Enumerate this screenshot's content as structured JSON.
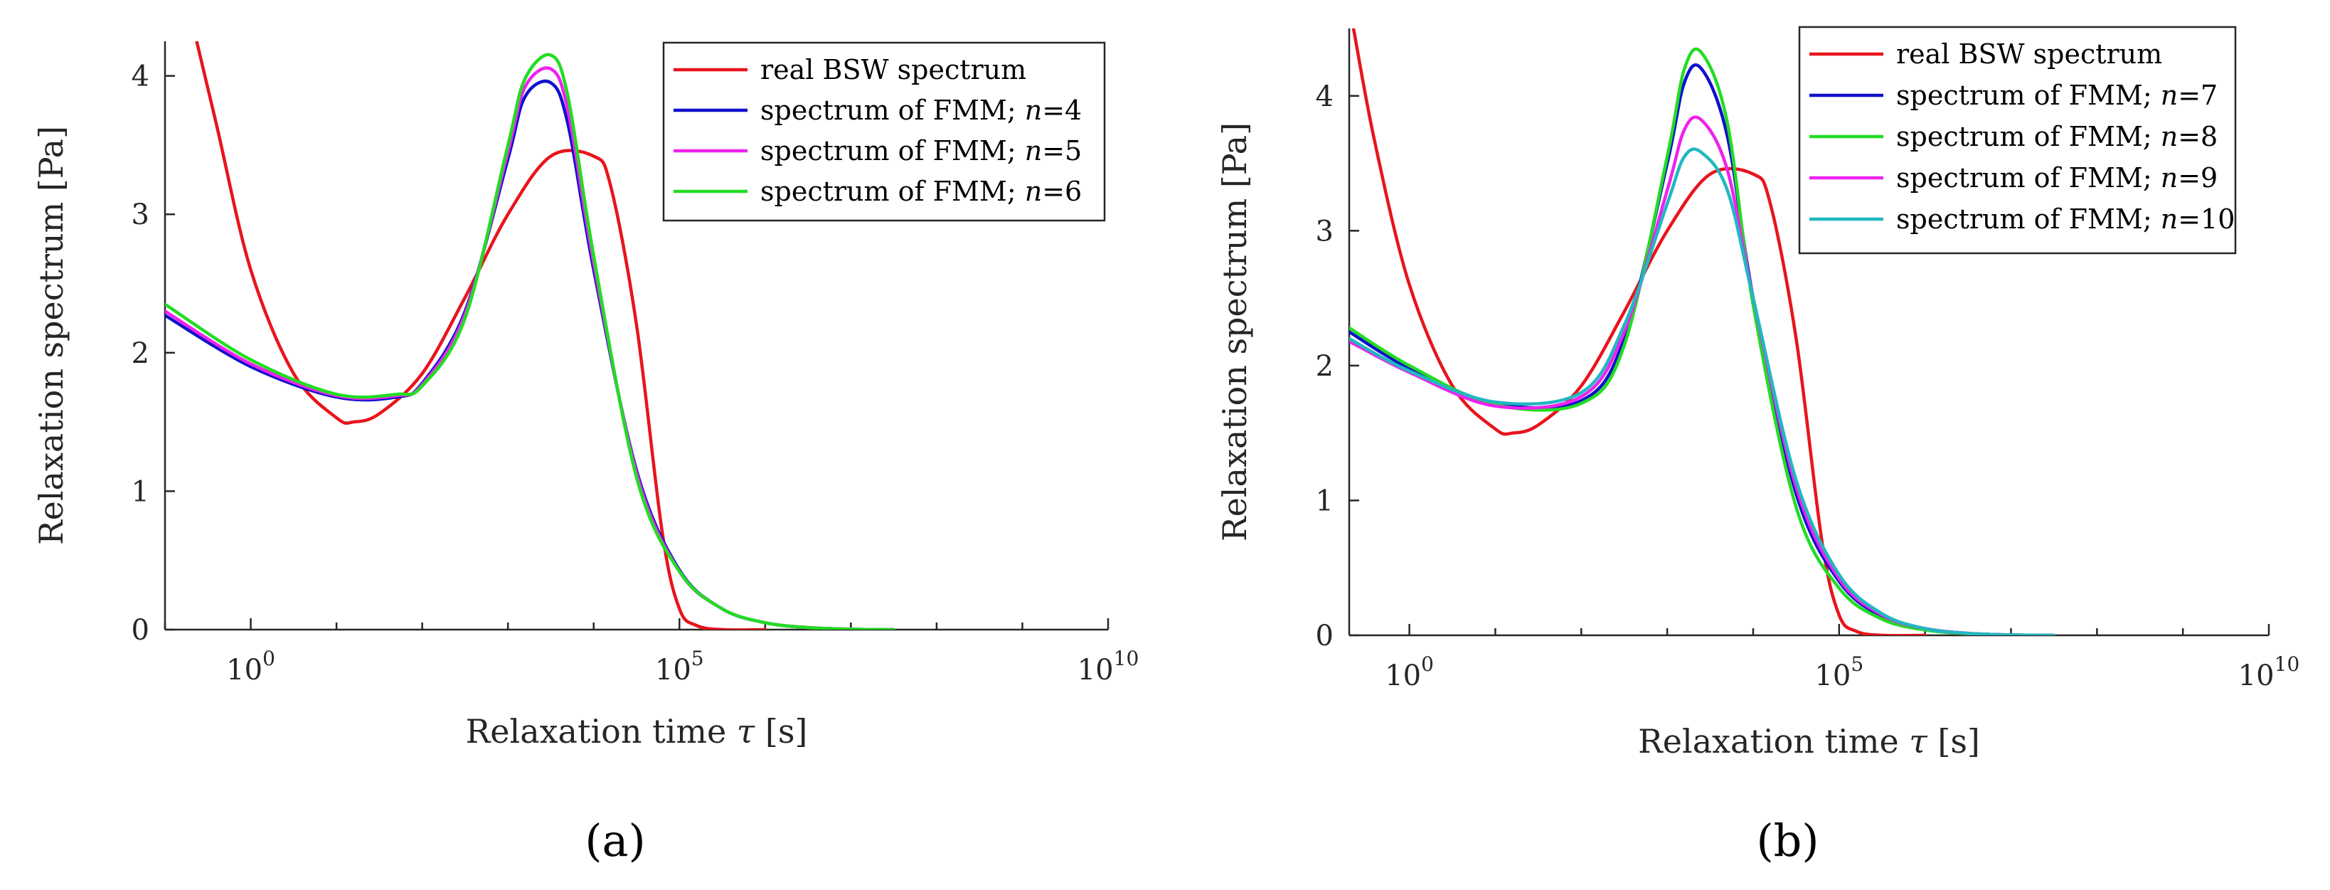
{
  "colors": {
    "real": "#e8141c",
    "n4": "#1010cc",
    "n5": "#ee22ee",
    "n6": "#22dd22",
    "n7": "#1010cc",
    "n8": "#22dd22",
    "n9": "#ee22ee",
    "n10": "#20b8c0"
  },
  "chart_data": [
    {
      "type": "line",
      "panel_label": "(a)",
      "xscale": "log10",
      "xlabel": "Relaxation time τ [s]",
      "xlabel_parts": {
        "text": "Relaxation time ",
        "symbol": "τ",
        "unit": " [s]"
      },
      "ylabel": "Relaxation spectrum  [Pa]",
      "xlim_log10": [
        -1.0,
        10.0
      ],
      "ylim": [
        0,
        4.25
      ],
      "xticks": [
        {
          "base": "10",
          "exp": "0",
          "log10": 0
        },
        {
          "base": "10",
          "exp": "5",
          "log10": 5
        },
        {
          "base": "10",
          "exp": "10",
          "log10": 10
        }
      ],
      "yticks": [
        0,
        1,
        2,
        3,
        4
      ],
      "legend": {
        "position": "top-right",
        "entries": [
          {
            "label": "real BSW spectrum",
            "color_key": "real"
          },
          {
            "label": "spectrum of FMM; ",
            "n_label": "n",
            "n_value": "=4",
            "color_key": "n4"
          },
          {
            "label": "spectrum of FMM; ",
            "n_label": "n",
            "n_value": "=5",
            "color_key": "n5"
          },
          {
            "label": "spectrum of FMM; ",
            "n_label": "n",
            "n_value": "=6",
            "color_key": "n6"
          }
        ]
      },
      "series": [
        {
          "name": "real BSW spectrum",
          "color_key": "real",
          "x_log10": [
            -0.65,
            -0.4,
            0,
            0.5,
            1,
            1.2,
            1.5,
            2,
            2.5,
            3,
            3.5,
            4,
            4.2,
            4.5,
            4.8,
            5,
            5.2,
            5.5,
            6
          ],
          "y": [
            4.3,
            3.65,
            2.6,
            1.85,
            1.53,
            1.5,
            1.56,
            1.85,
            2.4,
            3.0,
            3.42,
            3.42,
            3.2,
            2.2,
            0.7,
            0.15,
            0.03,
            0.0,
            0.0
          ]
        },
        {
          "name": "spectrum of FMM; n=4",
          "color_key": "n4",
          "x_log10": [
            -1,
            0,
            1,
            1.7,
            2,
            2.5,
            3,
            3.2,
            3.5,
            3.7,
            4,
            4.5,
            5,
            5.5,
            6,
            6.5,
            7,
            7.5
          ],
          "y": [
            2.27,
            1.9,
            1.68,
            1.68,
            1.78,
            2.3,
            3.4,
            3.85,
            3.95,
            3.65,
            2.6,
            1.15,
            0.43,
            0.15,
            0.05,
            0.015,
            0.003,
            0.0
          ]
        },
        {
          "name": "spectrum of FMM; n=5",
          "color_key": "n5",
          "x_log10": [
            -1,
            0,
            1,
            1.7,
            2,
            2.5,
            3,
            3.2,
            3.5,
            3.7,
            4,
            4.5,
            5,
            5.5,
            6,
            6.5,
            7,
            7.5
          ],
          "y": [
            2.3,
            1.92,
            1.69,
            1.69,
            1.77,
            2.28,
            3.45,
            3.92,
            4.05,
            3.75,
            2.65,
            1.13,
            0.42,
            0.15,
            0.05,
            0.015,
            0.003,
            0.0
          ]
        },
        {
          "name": "spectrum of FMM; n=6",
          "color_key": "n6",
          "x_log10": [
            -1,
            0,
            1,
            1.7,
            2,
            2.5,
            3,
            3.2,
            3.5,
            3.7,
            4,
            4.5,
            5,
            5.5,
            6,
            6.5,
            7,
            7.5
          ],
          "y": [
            2.35,
            1.95,
            1.7,
            1.7,
            1.76,
            2.25,
            3.5,
            3.98,
            4.15,
            3.85,
            2.7,
            1.1,
            0.42,
            0.15,
            0.05,
            0.015,
            0.003,
            0.0
          ]
        }
      ]
    },
    {
      "type": "line",
      "panel_label": "(b)",
      "xscale": "log10",
      "xlabel": "Relaxation time τ [s]",
      "xlabel_parts": {
        "text": "Relaxation time ",
        "symbol": "τ",
        "unit": " [s]"
      },
      "ylabel": "Relaxation spectrum  [Pa]",
      "xlim_log10": [
        -0.7,
        10.0
      ],
      "ylim": [
        0,
        4.5
      ],
      "xticks": [
        {
          "base": "10",
          "exp": "0",
          "log10": 0
        },
        {
          "base": "10",
          "exp": "5",
          "log10": 5
        },
        {
          "base": "10",
          "exp": "10",
          "log10": 10
        }
      ],
      "yticks": [
        0,
        1,
        2,
        3,
        4
      ],
      "legend": {
        "position": "top-right",
        "entries": [
          {
            "label": "real BSW spectrum",
            "color_key": "real"
          },
          {
            "label": "spectrum of FMM; ",
            "n_label": "n",
            "n_value": "=7",
            "color_key": "n7"
          },
          {
            "label": "spectrum of FMM; ",
            "n_label": "n",
            "n_value": "=8",
            "color_key": "n8"
          },
          {
            "label": "spectrum of FMM; ",
            "n_label": "n",
            "n_value": "=9",
            "color_key": "n9"
          },
          {
            "label": "spectrum of FMM; ",
            "n_label": "n",
            "n_value": "=10",
            "color_key": "n10"
          }
        ]
      },
      "series": [
        {
          "name": "real BSW spectrum",
          "color_key": "real",
          "x_log10": [
            -0.65,
            -0.4,
            0,
            0.5,
            1,
            1.2,
            1.5,
            2,
            2.5,
            3,
            3.5,
            4,
            4.2,
            4.5,
            4.8,
            5,
            5.2,
            5.5,
            6
          ],
          "y": [
            4.5,
            3.65,
            2.6,
            1.85,
            1.53,
            1.5,
            1.56,
            1.85,
            2.4,
            3.0,
            3.42,
            3.42,
            3.2,
            2.2,
            0.7,
            0.15,
            0.03,
            0.0,
            0.0
          ]
        },
        {
          "name": "spectrum of FMM; n=7",
          "color_key": "n7",
          "x_log10": [
            -0.7,
            0,
            1,
            2,
            2.5,
            3,
            3.2,
            3.4,
            3.7,
            4,
            4.5,
            5,
            5.5,
            6,
            6.5,
            7,
            7.5
          ],
          "y": [
            2.25,
            1.98,
            1.72,
            1.74,
            2.2,
            3.5,
            4.1,
            4.2,
            3.7,
            2.5,
            1.05,
            0.4,
            0.14,
            0.05,
            0.015,
            0.003,
            0.0
          ]
        },
        {
          "name": "spectrum of FMM; n=8",
          "color_key": "n8",
          "x_log10": [
            -0.7,
            0,
            1,
            2,
            2.5,
            3,
            3.2,
            3.4,
            3.7,
            4,
            4.5,
            5,
            5.5,
            6,
            6.5,
            7,
            7.5
          ],
          "y": [
            2.28,
            2.0,
            1.71,
            1.72,
            2.15,
            3.55,
            4.2,
            4.32,
            3.8,
            2.45,
            0.95,
            0.35,
            0.12,
            0.04,
            0.012,
            0.003,
            0.0
          ]
        },
        {
          "name": "spectrum of FMM; n=9",
          "color_key": "n9",
          "x_log10": [
            -0.7,
            0,
            1,
            2,
            2.5,
            3,
            3.2,
            3.4,
            3.7,
            4,
            4.5,
            5,
            5.5,
            6,
            6.5,
            7,
            7.5
          ],
          "y": [
            2.18,
            1.95,
            1.7,
            1.77,
            2.25,
            3.3,
            3.75,
            3.82,
            3.45,
            2.5,
            1.1,
            0.42,
            0.15,
            0.05,
            0.015,
            0.003,
            0.0
          ]
        },
        {
          "name": "spectrum of FMM; n=10",
          "color_key": "n10",
          "x_log10": [
            -0.7,
            0,
            1,
            2,
            2.5,
            3,
            3.2,
            3.4,
            3.7,
            4,
            4.5,
            5,
            5.5,
            6,
            6.5,
            7,
            7.5
          ],
          "y": [
            2.2,
            1.96,
            1.73,
            1.8,
            2.3,
            3.2,
            3.55,
            3.58,
            3.3,
            2.5,
            1.15,
            0.45,
            0.16,
            0.05,
            0.015,
            0.003,
            0.0
          ]
        }
      ]
    }
  ]
}
